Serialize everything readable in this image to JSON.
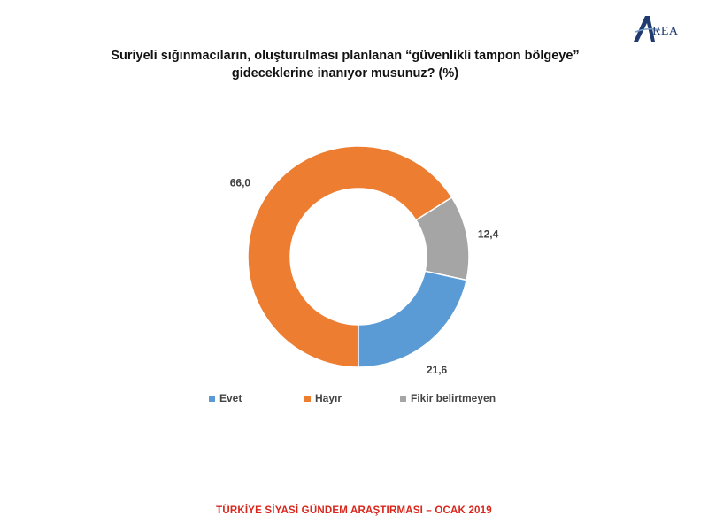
{
  "logo": {
    "text": "REA"
  },
  "header": {
    "title_line1": "Suriyeli sığınmacıların, oluşturulması planlanan “güvenlikli tampon bölgeye”",
    "title_line2": "gideceklerine inanıyor musunuz? (%)"
  },
  "chart_data": {
    "type": "pie",
    "variant": "donut",
    "title": "Suriyeli sığınmacıların, oluşturulması planlanan “güvenlikli tampon bölgeye” gideceklerine inanıyor musunuz? (%)",
    "categories": [
      "Evet",
      "Hayır",
      "Fikir belirtmeyen"
    ],
    "values": [
      21.6,
      66.0,
      12.4
    ],
    "labels": [
      "21,6",
      "66,0",
      "12,4"
    ],
    "colors": [
      "#5b9bd5",
      "#ed7d31",
      "#a5a5a5"
    ],
    "legend_position": "bottom"
  },
  "footer": {
    "text": "TÜRKİYE SİYASİ GÜNDEM ARAŞTIRMASI – OCAK 2019"
  }
}
